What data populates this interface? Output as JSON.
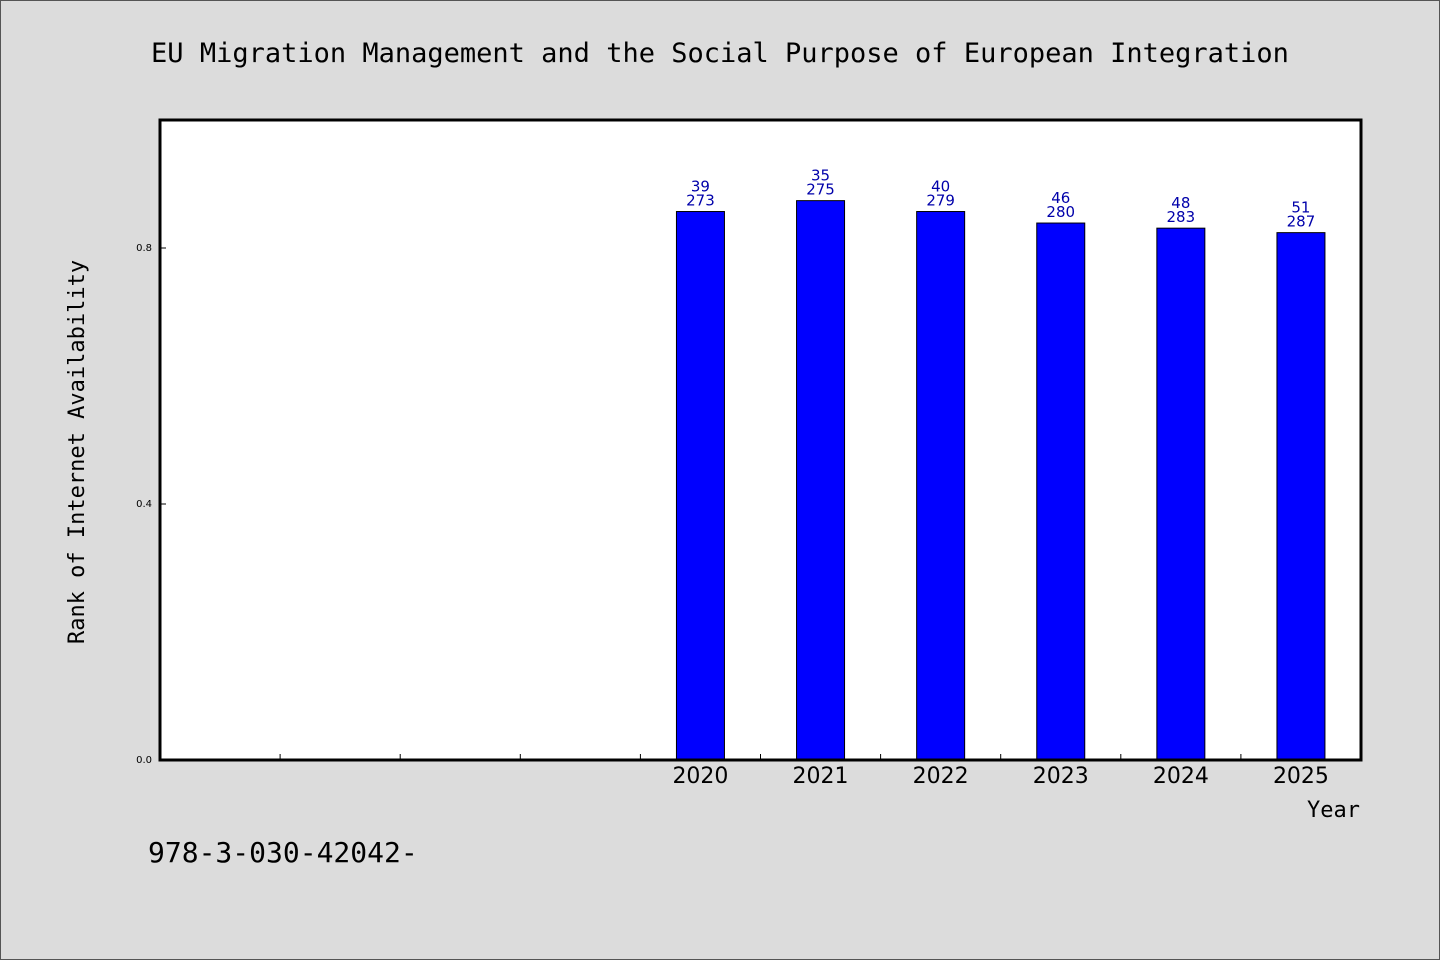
{
  "chart_data": {
    "type": "bar",
    "title": "EU Migration Management and the Social Purpose of European Integration",
    "xlabel": "Year",
    "ylabel": "Rank of Internet Availability",
    "ylim": [
      0,
      1.0
    ],
    "yticks": [
      "0.0",
      "0.4",
      "0.8"
    ],
    "categories": [
      "",
      "",
      "",
      "",
      "2020",
      "2021",
      "2022",
      "2023",
      "2024",
      "2025"
    ],
    "values": [
      null,
      null,
      null,
      null,
      0.857,
      0.874,
      0.857,
      0.839,
      0.831,
      0.824
    ],
    "labels_top": [
      "",
      "",
      "",
      "",
      "39",
      "35",
      "40",
      "46",
      "48",
      "51"
    ],
    "labels_bottom": [
      "",
      "",
      "",
      "",
      "273",
      "275",
      "279",
      "280",
      "283",
      "287"
    ],
    "bar_color": "#0000ff",
    "label_color": "#0000aa",
    "grid": false,
    "legend": "none"
  },
  "footnote": "978-3-030-42042-"
}
